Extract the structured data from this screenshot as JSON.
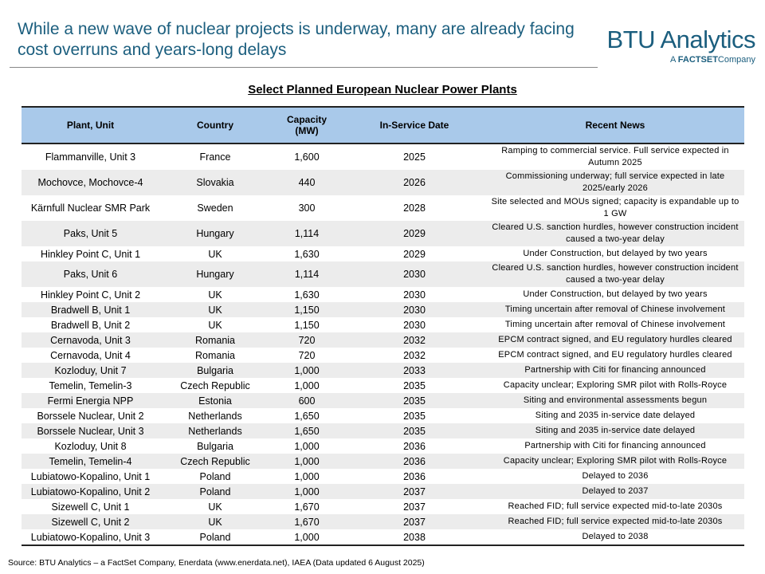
{
  "header": {
    "title": "While a new wave of nuclear projects is underway, many are already facing cost overruns and years-long delays",
    "logo": {
      "name": "BTU Analytics",
      "tagline_prefix": "A",
      "tagline_brand": "FACTSET",
      "tagline_suffix": "Company"
    }
  },
  "table": {
    "title": "Select Planned European Nuclear Power Plants",
    "columns": [
      "Plant, Unit",
      "Country",
      "Capacity (MW)",
      "In-Service Date",
      "Recent News"
    ],
    "rows": [
      [
        "Flammanville, Unit 3",
        "France",
        "1,600",
        "2025",
        "Ramping to commercial service. Full service expected in Autumn 2025"
      ],
      [
        "Mochovce, Mochovce-4",
        "Slovakia",
        "440",
        "2026",
        "Commissioning underway; full service expected in late 2025/early 2026"
      ],
      [
        "Kärnfull Nuclear SMR Park",
        "Sweden",
        "300",
        "2028",
        "Site selected and MOUs signed; capacity is expandable up to 1 GW"
      ],
      [
        "Paks, Unit 5",
        "Hungary",
        "1,114",
        "2029",
        "Cleared U.S. sanction hurdles, however construction incident caused a two-year delay"
      ],
      [
        "Hinkley Point C, Unit 1",
        "UK",
        "1,630",
        "2029",
        "Under Construction, but delayed by two years"
      ],
      [
        "Paks, Unit 6",
        "Hungary",
        "1,114",
        "2030",
        "Cleared U.S. sanction hurdles, however construction incident caused a two-year delay"
      ],
      [
        "Hinkley Point C, Unit 2",
        "UK",
        "1,630",
        "2030",
        "Under Construction, but delayed by two years"
      ],
      [
        "Bradwell B, Unit 1",
        "UK",
        "1,150",
        "2030",
        "Timing uncertain after removal of Chinese involvement"
      ],
      [
        "Bradwell B, Unit 2",
        "UK",
        "1,150",
        "2030",
        "Timing uncertain after removal of Chinese involvement"
      ],
      [
        "Cernavoda, Unit 3",
        "Romania",
        "720",
        "2032",
        "EPCM contract signed, and EU regulatory hurdles cleared"
      ],
      [
        "Cernavoda, Unit 4",
        "Romania",
        "720",
        "2032",
        "EPCM contract signed, and EU regulatory hurdles cleared"
      ],
      [
        "Kozloduy, Unit 7",
        "Bulgaria",
        "1,000",
        "2033",
        "Partnership with Citi for financing announced"
      ],
      [
        "Temelin, Temelin-3",
        "Czech Republic",
        "1,000",
        "2035",
        "Capacity unclear; Exploring SMR pilot with Rolls-Royce"
      ],
      [
        "Fermi Energia NPP",
        "Estonia",
        "600",
        "2035",
        "Siting and environmental assessments begun"
      ],
      [
        "Borssele Nuclear, Unit 2",
        "Netherlands",
        "1,650",
        "2035",
        "Siting and 2035 in-service date delayed"
      ],
      [
        "Borssele Nuclear, Unit 3",
        "Netherlands",
        "1,650",
        "2035",
        "Siting and 2035 in-service date delayed"
      ],
      [
        "Kozloduy, Unit 8",
        "Bulgaria",
        "1,000",
        "2036",
        "Partnership with Citi for financing announced"
      ],
      [
        "Temelin, Temelin-4",
        "Czech Republic",
        "1,000",
        "2036",
        "Capacity unclear; Exploring SMR pilot with Rolls-Royce"
      ],
      [
        "Lubiatowo-Kopalino, Unit 1",
        "Poland",
        "1,000",
        "2036",
        "Delayed to 2036"
      ],
      [
        "Lubiatowo-Kopalino, Unit 2",
        "Poland",
        "1,000",
        "2037",
        "Delayed to 2037"
      ],
      [
        "Sizewell C, Unit 1",
        "UK",
        "1,670",
        "2037",
        "Reached FID; full service expected mid-to-late 2030s"
      ],
      [
        "Sizewell C, Unit 2",
        "UK",
        "1,670",
        "2037",
        "Reached FID; full service expected mid-to-late 2030s"
      ],
      [
        "Lubiatowo-Kopalino, Unit 3",
        "Poland",
        "1,000",
        "2038",
        "Delayed to 2038"
      ]
    ]
  },
  "footer": {
    "source": "Source: BTU Analytics – a FactSet Company, Enerdata (www.enerdata.net), IAEA (Data updated 6 August 2025)"
  }
}
